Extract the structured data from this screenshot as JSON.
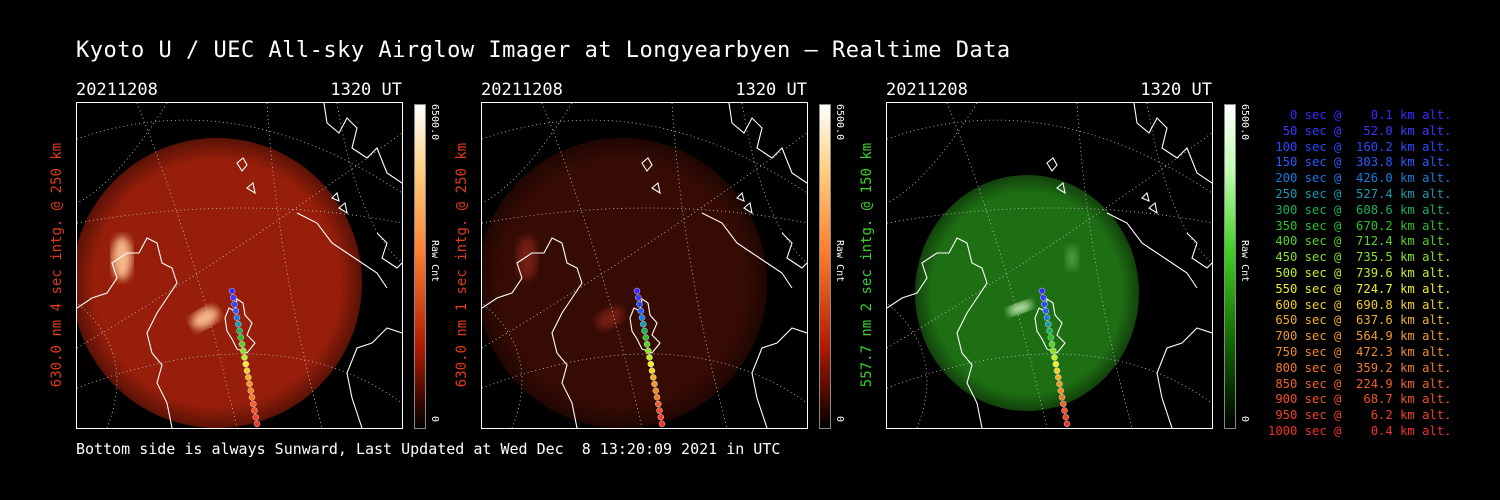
{
  "title": "Kyoto U / UEC All-sky Airglow Imager at Longyearbyen — Realtime Data",
  "footer": "Bottom side is always Sunward, Last Updated at Wed Dec  8 13:20:09 2021 in UTC",
  "panels": [
    {
      "date": "20211208",
      "time": "1320 UT",
      "ylabel": "630.0 nm 4 sec intg. @ 250 km",
      "cbar_max": "6500.0",
      "cbar_min": "0",
      "cbar_unit": "Raw Cnt",
      "color": "#e03a1a",
      "tone": "red",
      "brightness": 1.0
    },
    {
      "date": "20211208",
      "time": "1320 UT",
      "ylabel": "630.0 nm 1 sec intg. @ 250 km",
      "cbar_max": "6500.0",
      "cbar_min": "0",
      "cbar_unit": "Raw Cnt",
      "color": "#e03a1a",
      "tone": "red",
      "brightness": 0.35
    },
    {
      "date": "20211208",
      "time": "1320 UT",
      "ylabel": "557.7 nm 2 sec intg. @ 150 km",
      "cbar_max": "6500.0",
      "cbar_min": "0",
      "cbar_unit": "Raw Cnt",
      "color": "#3ad02a",
      "tone": "green",
      "brightness": 1.0
    }
  ],
  "legend": [
    {
      "text": "   0 sec @    0.1 km alt.",
      "color": "#3a2aff"
    },
    {
      "text": "  50 sec @   52.0 km alt.",
      "color": "#3a3aff"
    },
    {
      "text": " 100 sec @  160.2 km alt.",
      "color": "#2a4aff"
    },
    {
      "text": " 150 sec @  303.8 km alt.",
      "color": "#2a5aff"
    },
    {
      "text": " 200 sec @  426.0 km alt.",
      "color": "#1a7ae0"
    },
    {
      "text": " 250 sec @  527.4 km alt.",
      "color": "#1a9ab0"
    },
    {
      "text": " 300 sec @  608.6 km alt.",
      "color": "#1ab05a"
    },
    {
      "text": " 350 sec @  670.2 km alt.",
      "color": "#2ac02a"
    },
    {
      "text": " 400 sec @  712.4 km alt.",
      "color": "#5ad02a"
    },
    {
      "text": " 450 sec @  735.5 km alt.",
      "color": "#8ae02a"
    },
    {
      "text": " 500 sec @  739.6 km alt.",
      "color": "#c0f02a"
    },
    {
      "text": " 550 sec @  724.7 km alt.",
      "color": "#f0f02a"
    },
    {
      "text": " 600 sec @  690.8 km alt.",
      "color": "#f0d02a"
    },
    {
      "text": " 650 sec @  637.6 km alt.",
      "color": "#f0b02a"
    },
    {
      "text": " 700 sec @  564.9 km alt.",
      "color": "#f09a2a"
    },
    {
      "text": " 750 sec @  472.3 km alt.",
      "color": "#f08a2a"
    },
    {
      "text": " 800 sec @  359.2 km alt.",
      "color": "#f07a2a"
    },
    {
      "text": " 850 sec @  224.9 km alt.",
      "color": "#f0602a"
    },
    {
      "text": " 900 sec @   68.7 km alt.",
      "color": "#f0502a"
    },
    {
      "text": " 950 sec @    6.2 km alt.",
      "color": "#f0402a"
    },
    {
      "text": "1000 sec @    0.4 km alt.",
      "color": "#f0302a"
    }
  ]
}
